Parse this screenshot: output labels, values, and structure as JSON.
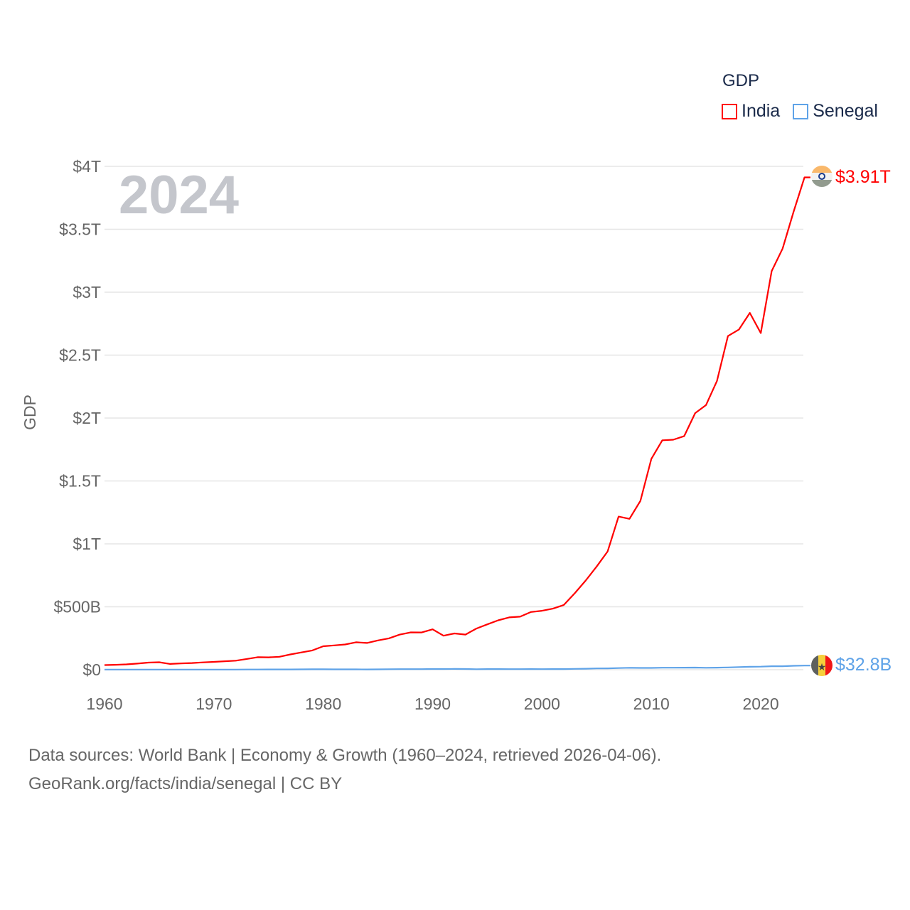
{
  "chart_data": {
    "type": "line",
    "title": "GDP",
    "year_overlay": "2024",
    "ylabel": "GDP",
    "xlabel": "",
    "xlim": [
      1960,
      2024
    ],
    "ylim": [
      0,
      4000
    ],
    "unit": "billion USD",
    "x_ticks": [
      1960,
      1970,
      1980,
      1990,
      2000,
      2010,
      2020
    ],
    "y_ticks": [
      {
        "value": 0,
        "label": "$0"
      },
      {
        "value": 500,
        "label": "$500B"
      },
      {
        "value": 1000,
        "label": "$1T"
      },
      {
        "value": 1500,
        "label": "$1.5T"
      },
      {
        "value": 2000,
        "label": "$2T"
      },
      {
        "value": 2500,
        "label": "$2.5T"
      },
      {
        "value": 3000,
        "label": "$3T"
      },
      {
        "value": 3500,
        "label": "$3.5T"
      },
      {
        "value": 4000,
        "label": "$4T"
      }
    ],
    "grid": true,
    "legend_position": "top-right",
    "x": [
      1960,
      1961,
      1962,
      1963,
      1964,
      1965,
      1966,
      1967,
      1968,
      1969,
      1970,
      1971,
      1972,
      1973,
      1974,
      1975,
      1976,
      1977,
      1978,
      1979,
      1980,
      1981,
      1982,
      1983,
      1984,
      1985,
      1986,
      1987,
      1988,
      1989,
      1990,
      1991,
      1992,
      1993,
      1994,
      1995,
      1996,
      1997,
      1998,
      1999,
      2000,
      2001,
      2002,
      2003,
      2004,
      2005,
      2006,
      2007,
      2008,
      2009,
      2010,
      2011,
      2012,
      2013,
      2014,
      2015,
      2016,
      2017,
      2018,
      2019,
      2020,
      2021,
      2022,
      2023,
      2024
    ],
    "series": [
      {
        "name": "India",
        "color": "#ff0000",
        "end_label": "$3.91T",
        "values": [
          37.0,
          39.2,
          42.2,
          48.4,
          56.5,
          59.6,
          45.9,
          50.1,
          53.1,
          58.4,
          62.4,
          67.4,
          71.5,
          85.5,
          99.5,
          98.5,
          102.7,
          121.5,
          137.3,
          153.0,
          186.3,
          193.5,
          200.7,
          218.3,
          212.2,
          232.5,
          249.0,
          279.0,
          296.6,
          296.0,
          321.0,
          270.1,
          288.2,
          279.3,
          327.3,
          360.3,
          392.9,
          415.9,
          421.4,
          458.8,
          468.4,
          485.4,
          514.9,
          607.7,
          709.1,
          820.4,
          940.3,
          1216.7,
          1198.9,
          1341.9,
          1675.6,
          1823.1,
          1827.6,
          1856.7,
          2039.1,
          2103.6,
          2294.8,
          2651.5,
          2702.9,
          2835.6,
          2674.9,
          3167.3,
          3346.1,
          3638.5,
          3912.7
        ]
      },
      {
        "name": "Senegal",
        "color": "#5fa3e8",
        "end_label": "$32.8B",
        "values": [
          1.0,
          1.0,
          1.1,
          1.1,
          1.2,
          1.2,
          1.3,
          1.2,
          1.3,
          1.2,
          0.9,
          1.0,
          1.3,
          1.5,
          1.8,
          2.4,
          2.4,
          2.5,
          2.7,
          3.3,
          3.5,
          3.0,
          2.9,
          2.6,
          2.4,
          2.6,
          3.7,
          4.6,
          4.7,
          4.6,
          5.7,
          5.5,
          6.0,
          5.6,
          3.9,
          4.9,
          5.0,
          4.7,
          4.8,
          4.9,
          4.7,
          4.9,
          5.3,
          6.9,
          8.0,
          10.0,
          10.7,
          12.9,
          15.0,
          14.3,
          14.4,
          15.7,
          15.9,
          16.5,
          17.2,
          15.4,
          16.4,
          18.3,
          21.0,
          23.4,
          24.5,
          27.6,
          27.7,
          30.8,
          32.8
        ]
      }
    ]
  },
  "footer": {
    "line1": "Data sources: World Bank | Economy & Growth (1960–2024, retrieved 2026-04-06).",
    "line2": "GeoRank.org/facts/india/senegal | CC BY"
  }
}
